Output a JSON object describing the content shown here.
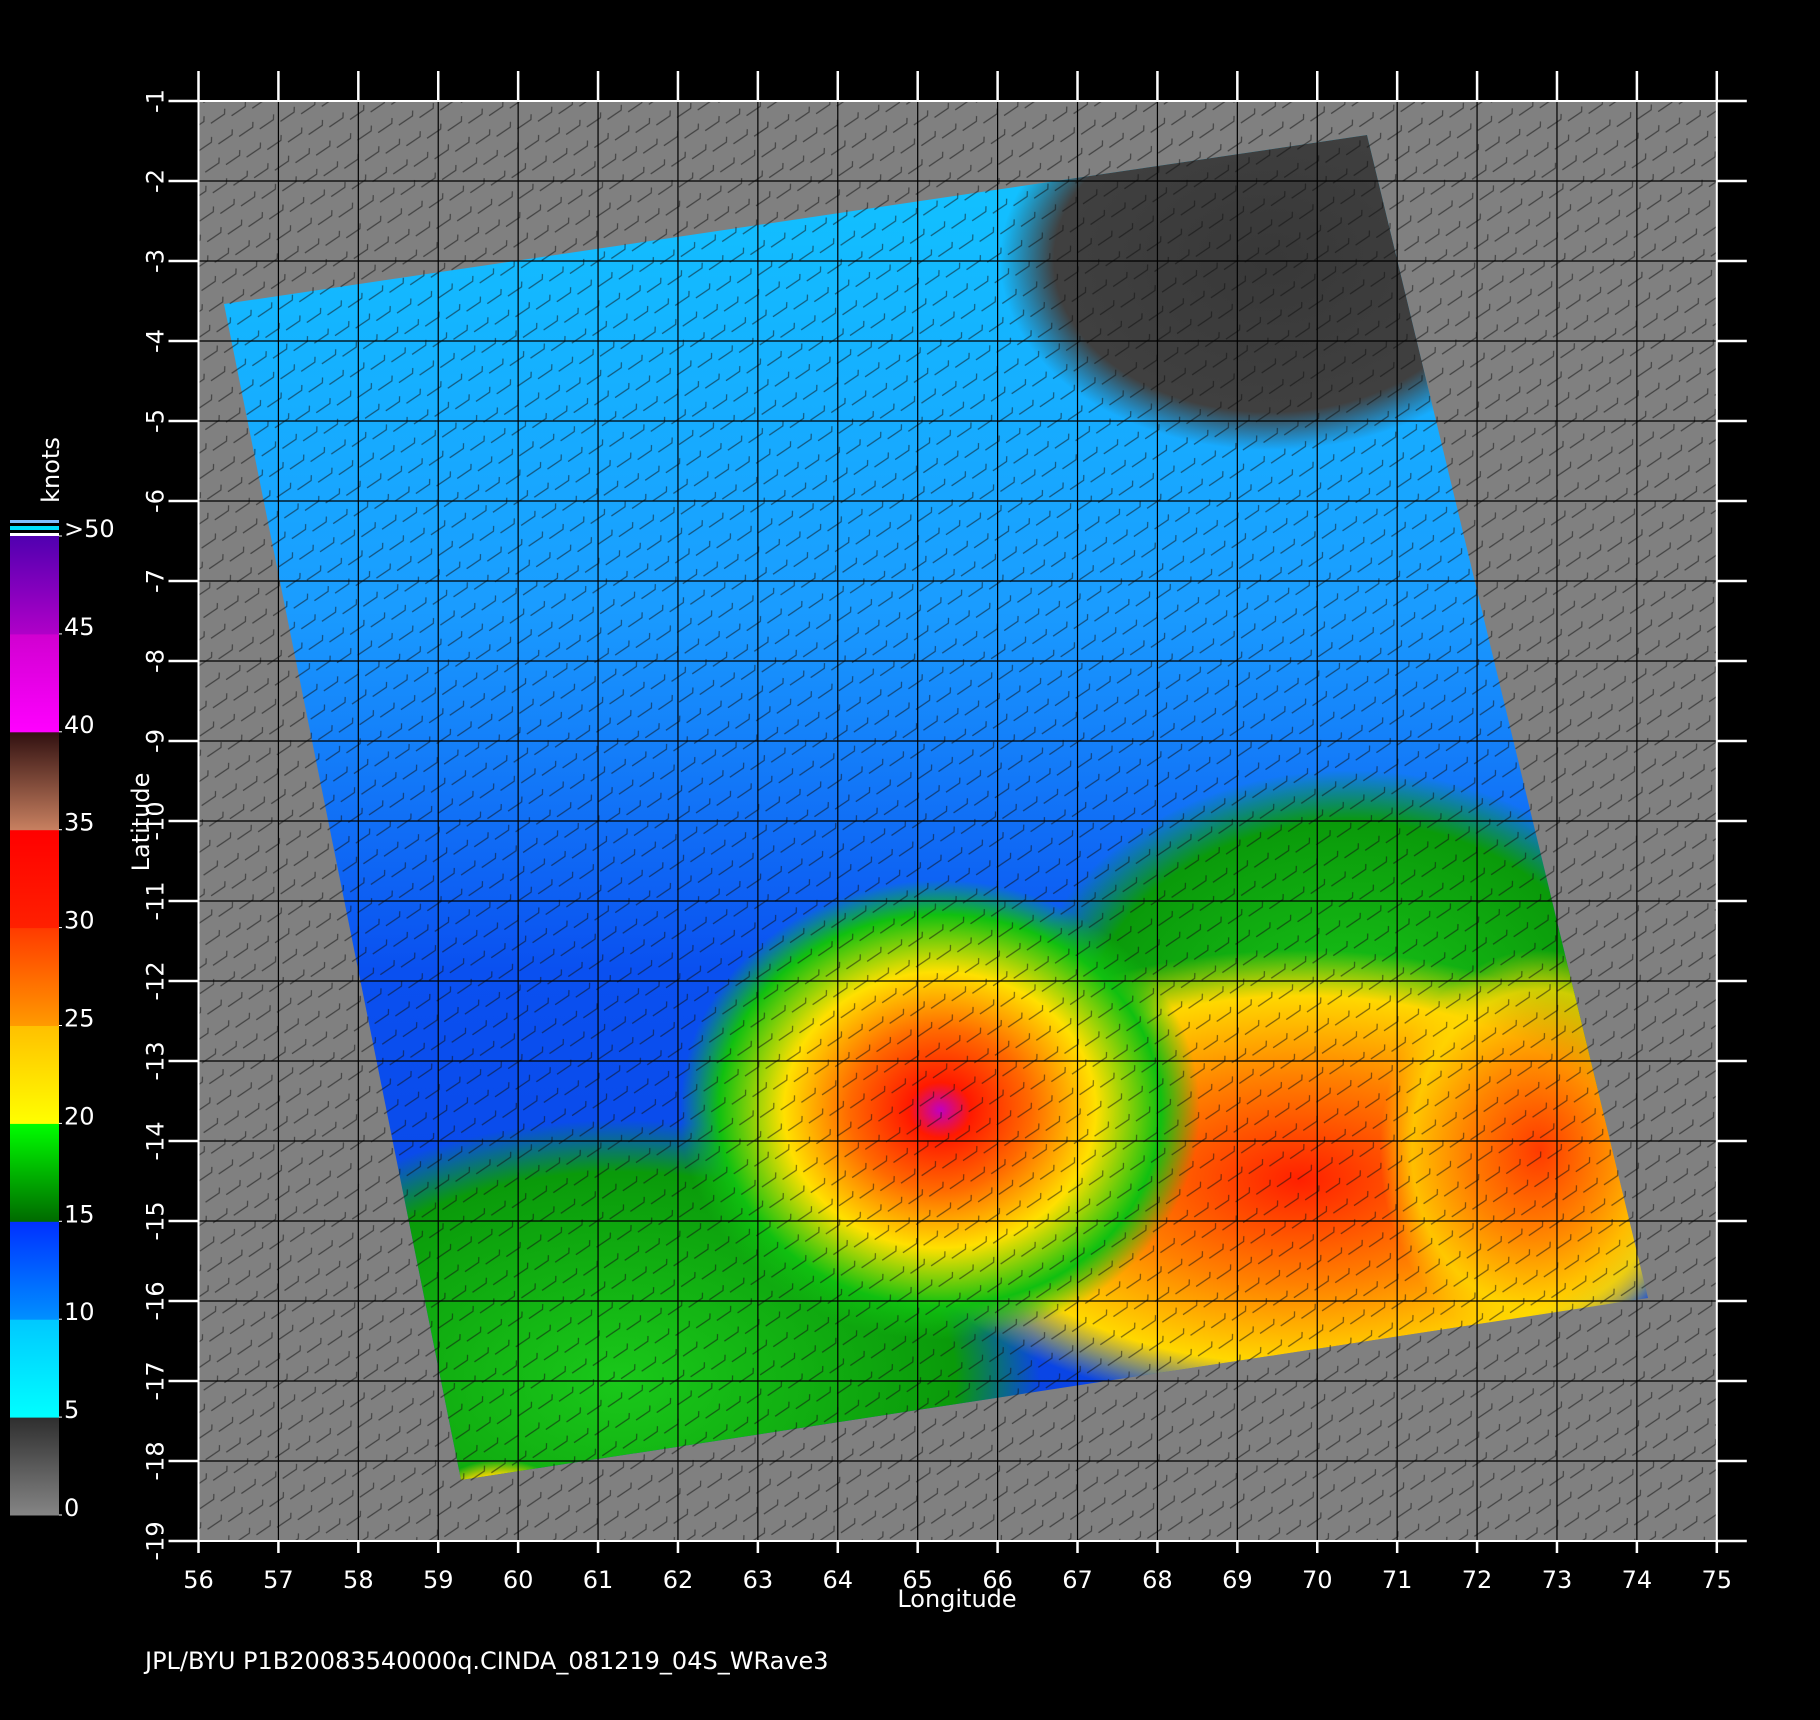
{
  "chart_data": {
    "type": "swath-map",
    "footer": "JPL/BYU  P1B20083540000q.CINDA_081219_04S_WRave3",
    "xlabel": "Longitude",
    "ylabel": "Latitude",
    "xlim": [
      56,
      75
    ],
    "ylim": [
      -19,
      -1
    ],
    "xticks": [
      56,
      57,
      58,
      59,
      60,
      61,
      62,
      63,
      64,
      65,
      66,
      67,
      68,
      69,
      70,
      71,
      72,
      73,
      74,
      75
    ],
    "yticks": [
      -1,
      -2,
      -3,
      -4,
      -5,
      -6,
      -7,
      -8,
      -9,
      -10,
      -11,
      -12,
      -13,
      -14,
      -15,
      -16,
      -17,
      -18,
      -19
    ],
    "grid": true,
    "colorbar": {
      "label": "knots",
      "lim": [
        0,
        50
      ],
      "ticks": [
        0,
        5,
        10,
        15,
        20,
        25,
        30,
        35,
        40,
        45,
        {
          "value": 50,
          "label": ">50"
        }
      ],
      "colors": [
        [
          "#858585",
          "#2e2e2e"
        ],
        [
          "#00ffff",
          "#00c8ff"
        ],
        [
          "#0090ff",
          "#0030ff"
        ],
        [
          "#006a00",
          "#00ff00"
        ],
        [
          "#ffff00",
          "#ffc000"
        ],
        [
          "#ff9a00",
          "#ff3a00"
        ],
        [
          "#ff2000",
          "#ff0000"
        ],
        [
          "#c88060",
          "#301010"
        ],
        [
          "#ff00ff",
          "#d000d0"
        ],
        [
          "#b000c8",
          "#5000b0"
        ]
      ]
    }
  }
}
